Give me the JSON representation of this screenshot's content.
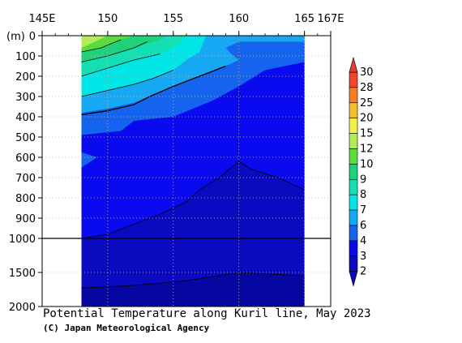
{
  "chart_data": {
    "type": "contour",
    "title": "Potential Temperature along Kuril line, May 2023",
    "credit": "(C) Japan Meteorological Agency",
    "depth_unit_label": "(m)",
    "x_range": [
      145,
      167
    ],
    "x_ticks": [
      {
        "value": 145,
        "label": "145E"
      },
      {
        "value": 150,
        "label": "150"
      },
      {
        "value": 155,
        "label": "155"
      },
      {
        "value": 160,
        "label": "160"
      },
      {
        "value": 165,
        "label": "165"
      },
      {
        "value": 167,
        "label": "167E"
      }
    ],
    "y_range": [
      0,
      2000
    ],
    "y_ticks": [
      {
        "value": 0,
        "label": "0"
      },
      {
        "value": 100,
        "label": "100"
      },
      {
        "value": 200,
        "label": "200"
      },
      {
        "value": 300,
        "label": "300"
      },
      {
        "value": 400,
        "label": "400"
      },
      {
        "value": 500,
        "label": "500"
      },
      {
        "value": 600,
        "label": "600"
      },
      {
        "value": 700,
        "label": "700"
      },
      {
        "value": 800,
        "label": "800"
      },
      {
        "value": 900,
        "label": "900"
      },
      {
        "value": 1000,
        "label": "1000"
      },
      {
        "value": 1500,
        "label": "1500"
      },
      {
        "value": 2000,
        "label": "2000"
      }
    ],
    "y_scale_break": 1000,
    "section_lon_range": [
      148,
      165
    ],
    "contour_levels": [
      2,
      3,
      4,
      6,
      7,
      8,
      9,
      10,
      12,
      15,
      20,
      25,
      28,
      30
    ],
    "colorbar_labels": [
      "30",
      "28",
      "25",
      "20",
      "15",
      "12",
      "10",
      "9",
      "8",
      "7",
      "6",
      "4",
      "3",
      "2"
    ],
    "colors": {
      "below_2": "#0a0ac0",
      "2-3": "#0a0ac0",
      "3-4": "#0a0aee",
      "4-6": "#1464f0",
      "6-7": "#16a8f2",
      "7-8": "#00e6e6",
      "8-9": "#12e0b4",
      "9-10": "#1ed17a",
      "10-12": "#5adc3c",
      "12-15": "#b4eb5a",
      "15-20": "#f0f04a",
      "20-25": "#f5be2d",
      "25-28": "#f57d28",
      "28-30": "#f0462d",
      "deep": "#0606a0"
    },
    "regions": [
      {
        "temp_range": "deep",
        "points": [
          [
            148,
            1500
          ],
          [
            148,
            1720
          ],
          [
            152,
            1690
          ],
          [
            156,
            1620
          ],
          [
            160,
            1500
          ],
          [
            165,
            1550
          ],
          [
            165,
            2000
          ],
          [
            148,
            2000
          ]
        ]
      },
      {
        "temp_range": "3-4",
        "points": [
          [
            148,
            0
          ],
          [
            148,
            1000
          ],
          [
            150,
            980
          ],
          [
            152,
            930
          ],
          [
            154,
            880
          ],
          [
            156,
            820
          ],
          [
            157,
            760
          ],
          [
            158.5,
            700
          ],
          [
            160,
            620
          ],
          [
            161,
            660
          ],
          [
            163,
            700
          ],
          [
            165,
            760
          ],
          [
            165,
            0
          ]
        ]
      },
      {
        "temp_range": "4-6",
        "points": [
          [
            148,
            0
          ],
          [
            148,
            490
          ],
          [
            151,
            470
          ],
          [
            152,
            420
          ],
          [
            155,
            400
          ],
          [
            158,
            320
          ],
          [
            160,
            250
          ],
          [
            162,
            170
          ],
          [
            165,
            130
          ],
          [
            165,
            0
          ]
        ]
      },
      {
        "temp_range": "4-6",
        "points": [
          [
            148,
            575
          ],
          [
            149.2,
            600
          ],
          [
            148,
            650
          ]
        ]
      },
      {
        "temp_range": "6-7",
        "points": [
          [
            148,
            0
          ],
          [
            148,
            380
          ],
          [
            150,
            360
          ],
          [
            152,
            330
          ],
          [
            153.2,
            300
          ],
          [
            155,
            250
          ],
          [
            157,
            200
          ],
          [
            159,
            150
          ],
          [
            160,
            120
          ],
          [
            159.5,
            95
          ],
          [
            159,
            60
          ],
          [
            160,
            30
          ],
          [
            160,
            0
          ]
        ]
      },
      {
        "temp_range": "6-7",
        "points": [
          [
            160,
            0
          ],
          [
            160,
            30
          ],
          [
            165,
            30
          ],
          [
            165,
            0
          ]
        ]
      },
      {
        "temp_range": "7-8",
        "points": [
          [
            148,
            0
          ],
          [
            148,
            300
          ],
          [
            150,
            270
          ],
          [
            152,
            240
          ],
          [
            153.5,
            210
          ],
          [
            155,
            170
          ],
          [
            156,
            120
          ],
          [
            157,
            80
          ],
          [
            157.5,
            0
          ]
        ]
      },
      {
        "temp_range": "8-9",
        "points": [
          [
            148,
            0
          ],
          [
            148,
            200
          ],
          [
            150,
            160
          ],
          [
            152,
            120
          ],
          [
            154,
            90
          ],
          [
            155.5,
            40
          ],
          [
            156,
            0
          ]
        ]
      },
      {
        "temp_range": "9-10",
        "points": [
          [
            148,
            0
          ],
          [
            148,
            130
          ],
          [
            150,
            100
          ],
          [
            152,
            60
          ],
          [
            154,
            20
          ],
          [
            154.5,
            0
          ]
        ]
      },
      {
        "temp_range": "10-12",
        "points": [
          [
            148,
            0
          ],
          [
            148,
            80
          ],
          [
            149.5,
            60
          ],
          [
            151,
            20
          ],
          [
            152,
            0
          ]
        ]
      },
      {
        "temp_range": "12-15",
        "points": [
          [
            148,
            0
          ],
          [
            148,
            60
          ],
          [
            149,
            30
          ],
          [
            150,
            0
          ]
        ]
      }
    ],
    "contour_lines": [
      [
        [
          148,
          390
        ],
        [
          150,
          370
        ],
        [
          152,
          340
        ],
        [
          153.2,
          300
        ],
        [
          155,
          250
        ],
        [
          157,
          200
        ],
        [
          159,
          150
        ]
      ],
      [
        [
          148,
          1000
        ],
        [
          150,
          980
        ],
        [
          152,
          930
        ],
        [
          154,
          880
        ],
        [
          156,
          820
        ],
        [
          157,
          760
        ],
        [
          158.5,
          700
        ],
        [
          160,
          620
        ],
        [
          161,
          660
        ],
        [
          163,
          700
        ],
        [
          165,
          760
        ]
      ],
      [
        [
          148,
          300
        ],
        [
          150,
          270
        ],
        [
          152,
          240
        ],
        [
          153.5,
          210
        ],
        [
          155,
          170
        ]
      ],
      [
        [
          148,
          200
        ],
        [
          150,
          160
        ],
        [
          152,
          120
        ],
        [
          154,
          90
        ]
      ],
      [
        [
          148,
          130
        ],
        [
          150,
          100
        ],
        [
          152,
          60
        ],
        [
          153,
          30
        ]
      ],
      [
        [
          148,
          80
        ],
        [
          149.5,
          60
        ],
        [
          151,
          20
        ]
      ],
      [
        [
          148,
          1730
        ],
        [
          152,
          1690
        ],
        [
          156,
          1620
        ],
        [
          160,
          1500
        ],
        [
          165,
          1550
        ]
      ]
    ]
  }
}
